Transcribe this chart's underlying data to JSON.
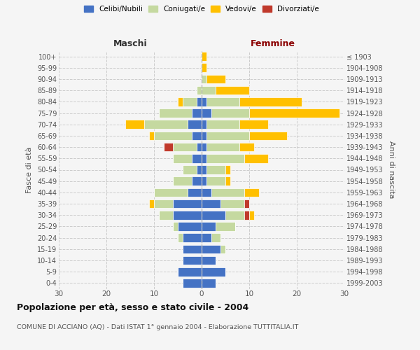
{
  "age_groups": [
    "0-4",
    "5-9",
    "10-14",
    "15-19",
    "20-24",
    "25-29",
    "30-34",
    "35-39",
    "40-44",
    "45-49",
    "50-54",
    "55-59",
    "60-64",
    "65-69",
    "70-74",
    "75-79",
    "80-84",
    "85-89",
    "90-94",
    "95-99",
    "100+"
  ],
  "birth_years": [
    "1999-2003",
    "1994-1998",
    "1989-1993",
    "1984-1988",
    "1979-1983",
    "1974-1978",
    "1969-1973",
    "1964-1968",
    "1959-1963",
    "1954-1958",
    "1949-1953",
    "1944-1948",
    "1939-1943",
    "1934-1938",
    "1929-1933",
    "1924-1928",
    "1919-1923",
    "1914-1918",
    "1909-1913",
    "1904-1908",
    "≤ 1903"
  ],
  "males": {
    "celibi": [
      4,
      5,
      4,
      4,
      4,
      5,
      6,
      6,
      3,
      2,
      1,
      2,
      1,
      2,
      3,
      2,
      1,
      0,
      0,
      0,
      0
    ],
    "coniugati": [
      0,
      0,
      0,
      0,
      1,
      1,
      3,
      4,
      7,
      4,
      3,
      4,
      5,
      8,
      9,
      7,
      3,
      1,
      0,
      0,
      0
    ],
    "vedovi": [
      0,
      0,
      0,
      0,
      0,
      0,
      0,
      1,
      0,
      0,
      0,
      0,
      0,
      1,
      4,
      0,
      1,
      0,
      0,
      0,
      0
    ],
    "divorziati": [
      0,
      0,
      0,
      0,
      0,
      0,
      0,
      0,
      0,
      0,
      0,
      0,
      2,
      0,
      0,
      0,
      0,
      0,
      0,
      0,
      0
    ]
  },
  "females": {
    "nubili": [
      3,
      5,
      3,
      4,
      2,
      3,
      5,
      4,
      2,
      1,
      1,
      1,
      1,
      1,
      1,
      2,
      1,
      0,
      0,
      0,
      0
    ],
    "coniugate": [
      0,
      0,
      0,
      1,
      2,
      4,
      4,
      5,
      7,
      4,
      4,
      8,
      7,
      9,
      7,
      8,
      7,
      3,
      1,
      0,
      0
    ],
    "vedove": [
      0,
      0,
      0,
      0,
      0,
      0,
      1,
      0,
      3,
      1,
      1,
      5,
      3,
      8,
      6,
      19,
      13,
      7,
      4,
      1,
      1
    ],
    "divorziate": [
      0,
      0,
      0,
      0,
      0,
      0,
      1,
      1,
      0,
      0,
      0,
      0,
      0,
      0,
      0,
      0,
      0,
      0,
      0,
      0,
      0
    ]
  },
  "colors": {
    "celibi": "#4472c4",
    "coniugati": "#c5d9a0",
    "vedovi": "#ffc000",
    "divorziati": "#c0392b"
  },
  "xlim": 30,
  "title": "Popolazione per età, sesso e stato civile - 2004",
  "subtitle": "COMUNE DI ACCIANO (AQ) - Dati ISTAT 1° gennaio 2004 - Elaborazione TUTTITALIA.IT",
  "ylabel_left": "Fasce di età",
  "ylabel_right": "Anni di nascita",
  "xlabel_left": "Maschi",
  "xlabel_right": "Femmine",
  "femmine_color": "#8b0000",
  "bg_color": "#f5f5f5",
  "grid_color": "#cccccc"
}
